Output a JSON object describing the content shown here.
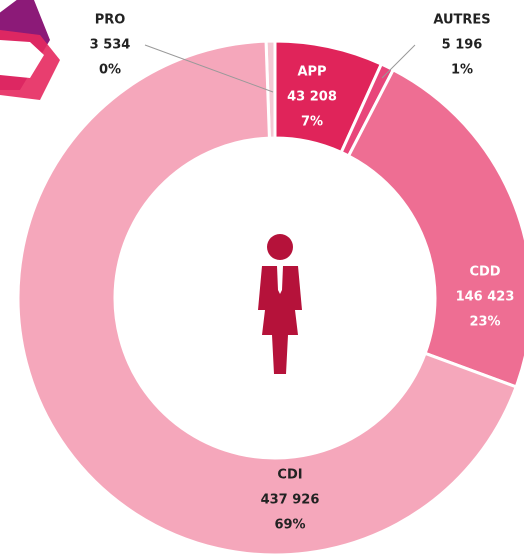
{
  "chart_data": {
    "type": "pie",
    "categories": [
      "PRO",
      "APP",
      "AUTRES",
      "CDD",
      "CDI"
    ],
    "values": [
      3534,
      43208,
      5196,
      146423,
      437926
    ],
    "value_labels": [
      "3 534",
      "43 208",
      "5 196",
      "146 423",
      "437 926"
    ],
    "percents": [
      0,
      7,
      1,
      23,
      69
    ],
    "percent_labels": [
      "0%",
      "7%",
      "1%",
      "23%",
      "69%"
    ],
    "colors": [
      "#f4c9d4",
      "#e0245a",
      "#e8457a",
      "#ee6e93",
      "#f5a7bb"
    ]
  }
}
